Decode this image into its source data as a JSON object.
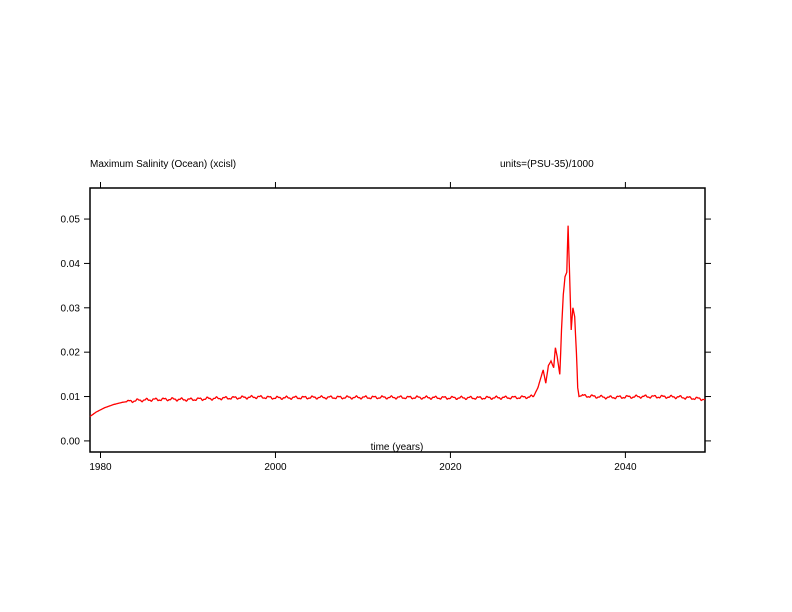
{
  "chart_data": {
    "type": "line",
    "title": "Maximum Salinity (Ocean) (xcisl)",
    "units_label": "units=(PSU-35)/1000",
    "xlabel": "time (years)",
    "ylabel": "",
    "xlim": [
      1978.8,
      2049.1
    ],
    "ylim": [
      -0.0025,
      0.057
    ],
    "x_ticks": [
      1980,
      2000,
      2020,
      2040
    ],
    "y_ticks": [
      0.0,
      0.01,
      0.02,
      0.03,
      0.04,
      0.05
    ],
    "y_tick_labels": [
      "0.00",
      "0.01",
      "0.02",
      "0.03",
      "0.04",
      "0.05"
    ],
    "grid": false,
    "series": [
      {
        "color": "#ff0000",
        "x": [
          1978.8,
          1979.5,
          1980.5,
          1981.5,
          1982.5,
          1984,
          1986,
          1988,
          1990,
          1992,
          1995,
          1998,
          2000,
          2005,
          2010,
          2015,
          2020,
          2024,
          2028,
          2029.5,
          2030.0,
          2030.3,
          2030.6,
          2030.9,
          2031.2,
          2031.5,
          2031.8,
          2032.0,
          2032.2,
          2032.5,
          2032.7,
          2032.9,
          2033.1,
          2033.3,
          2033.45,
          2033.6,
          2033.8,
          2034.0,
          2034.2,
          2034.4,
          2034.55,
          2034.7,
          2035,
          2038,
          2042,
          2046,
          2049.1
        ],
        "y": [
          0.0055,
          0.0065,
          0.0075,
          0.0082,
          0.0087,
          0.0091,
          0.0093,
          0.0094,
          0.0093,
          0.0095,
          0.0097,
          0.0099,
          0.0097,
          0.0098,
          0.0098,
          0.0098,
          0.0097,
          0.0097,
          0.0098,
          0.01,
          0.012,
          0.014,
          0.016,
          0.013,
          0.017,
          0.018,
          0.0165,
          0.021,
          0.019,
          0.015,
          0.025,
          0.033,
          0.037,
          0.038,
          0.0485,
          0.039,
          0.025,
          0.03,
          0.028,
          0.02,
          0.012,
          0.01,
          0.0102,
          0.0098,
          0.01,
          0.0099,
          0.0094
        ]
      }
    ]
  }
}
